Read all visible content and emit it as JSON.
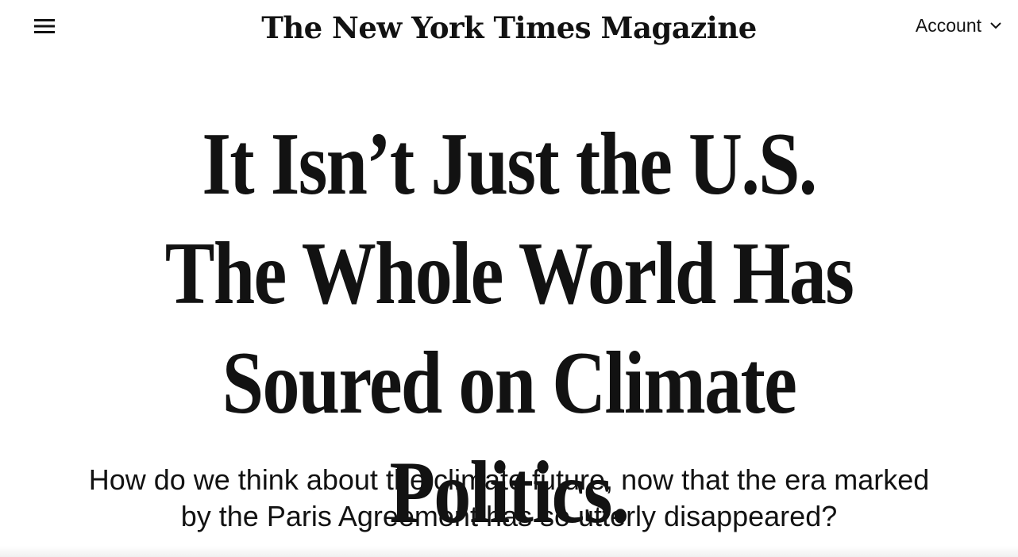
{
  "header": {
    "menu_icon": "hamburger-menu-icon",
    "masthead": "The New York Times Magazine",
    "account_label": "Account",
    "account_icon": "chevron-down-icon"
  },
  "article": {
    "headline": "It Isn’t Just the U.S. The Whole World Has Soured on Climate Politics.",
    "dek": "How do we think about the climate future, now that the era marked by the Paris Agreement has so utterly disappeared?"
  },
  "colors": {
    "text": "#121212",
    "background": "#ffffff"
  }
}
